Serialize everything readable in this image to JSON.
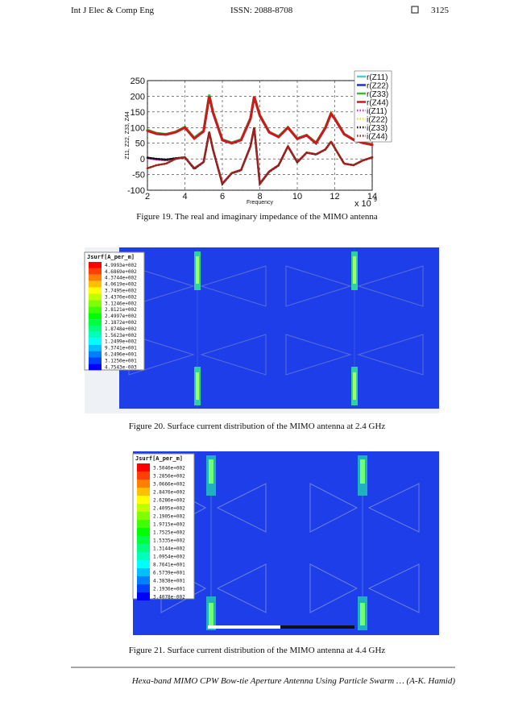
{
  "header": {
    "journal": "Int J Elec & Comp Eng",
    "issn": "ISSN: 2088-8708",
    "page": "3125"
  },
  "figures": [
    {
      "caption": "Figure 19. The real and imaginary impedance of the MIMO antenna",
      "chart": {
        "type": "line",
        "x_label": "Frequency",
        "y_label": "Z11, Z22, Z33, Z44",
        "scale_label": "x 10",
        "scale_exponent": "9",
        "x": [
          2,
          2.5,
          3,
          3.5,
          4,
          4.5,
          5,
          5.3,
          5.5,
          6,
          6.5,
          7,
          7.5,
          7.7,
          8,
          8.5,
          9,
          9.5,
          10,
          10.5,
          11,
          11.5,
          11.8,
          12,
          12.5,
          13,
          13.5,
          14
        ],
        "xlim": [
          2,
          14
        ],
        "xticks": [
          2,
          4,
          6,
          8,
          10,
          12,
          14
        ],
        "ylim": [
          -100,
          250
        ],
        "yticks": [
          -100,
          -50,
          0,
          50,
          100,
          150,
          200,
          250
        ],
        "grid": true,
        "legend": "top-right",
        "series": [
          {
            "name": "r(Z11)",
            "color": "#33d6e6",
            "style": "solid",
            "values": [
              92,
              82,
              78,
              85,
              100,
              68,
              90,
              200,
              150,
              62,
              52,
              62,
              130,
              198,
              140,
              86,
              72,
              100,
              66,
              76,
              52,
              100,
              145,
              130,
              80,
              62,
              52,
              46
            ]
          },
          {
            "name": "r(Z22)",
            "color": "#2030d0",
            "style": "solid",
            "values": [
              90,
              80,
              78,
              86,
              101,
              66,
              88,
              202,
              148,
              60,
              50,
              60,
              128,
              199,
              138,
              85,
              70,
              100,
              64,
              75,
              50,
              99,
              144,
              128,
              79,
              61,
              51,
              45
            ]
          },
          {
            "name": "r(Z33)",
            "color": "#30c030",
            "style": "solid",
            "values": [
              92,
              82,
              79,
              86,
              102,
              67,
              90,
              205,
              150,
              61,
              51,
              61,
              130,
              200,
              140,
              86,
              71,
              101,
              65,
              76,
              51,
              100,
              146,
              130,
              80,
              62,
              52,
              46
            ]
          },
          {
            "name": "r(Z44)",
            "color": "#d01818",
            "style": "solid",
            "values": [
              90,
              80,
              78,
              85,
              100,
              65,
              88,
              200,
              148,
              60,
              50,
              60,
              128,
              198,
              138,
              85,
              70,
              100,
              64,
              75,
              50,
              99,
              144,
              128,
              79,
              61,
              51,
              45
            ]
          },
          {
            "name": "i(Z11)",
            "color": "#d030d0",
            "style": "dotted",
            "values": [
              2,
              -2,
              -5,
              0,
              5,
              -30,
              -10,
              85,
              30,
              -78,
              -45,
              -35,
              40,
              100,
              -78,
              -40,
              -20,
              40,
              -10,
              20,
              15,
              30,
              55,
              35,
              -15,
              -20,
              -5,
              5
            ]
          },
          {
            "name": "i(Z22)",
            "color": "#e0e020",
            "style": "dotted",
            "values": [
              -30,
              -20,
              -15,
              0,
              5,
              -30,
              -10,
              86,
              30,
              -80,
              -45,
              -35,
              40,
              101,
              -80,
              -40,
              -20,
              40,
              -10,
              20,
              15,
              30,
              55,
              35,
              -15,
              -20,
              -5,
              5
            ]
          },
          {
            "name": "i(Z33)",
            "color": "#101010",
            "style": "dotted",
            "values": [
              4,
              0,
              -2,
              2,
              5,
              -32,
              -10,
              85,
              30,
              -80,
              -46,
              -36,
              40,
              100,
              -80,
              -41,
              -21,
              40,
              -11,
              20,
              14,
              30,
              55,
              35,
              -15,
              -20,
              -5,
              5
            ]
          },
          {
            "name": "i(Z44)",
            "color": "#a02020",
            "style": "dotted",
            "values": [
              -30,
              -20,
              -15,
              0,
              5,
              -30,
              -10,
              85,
              30,
              -80,
              -45,
              -35,
              40,
              100,
              -80,
              -40,
              -20,
              40,
              -10,
              20,
              15,
              30,
              55,
              35,
              -15,
              -20,
              -5,
              5
            ]
          }
        ]
      }
    },
    {
      "caption": "Figure 20. Surface current distribution of the MIMO antenna at 2.4 GHz",
      "colorbar": {
        "title": "Jsurf[A_per_m]",
        "labels": [
          "4.9993e+002",
          "4.6869e+002",
          "4.3744e+002",
          "4.0619e+002",
          "3.7495e+002",
          "3.4370e+002",
          "3.1246e+002",
          "2.8121e+002",
          "2.4997e+002",
          "2.1872e+002",
          "1.8748e+002",
          "1.5623e+002",
          "1.2499e+002",
          "9.3741e+001",
          "6.2496e+001",
          "3.1250e+001",
          "4.7543e-003"
        ]
      }
    },
    {
      "caption": "Figure 21. Surface current distribution of the MIMO antenna at 4.4 GHz",
      "colorbar": {
        "title": "Jsurf[A_per_m]",
        "labels": [
          "3.5046e+002",
          "3.2856e+002",
          "3.0666e+002",
          "2.8476e+002",
          "2.6286e+002",
          "2.4095e+002",
          "2.1905e+002",
          "1.9715e+002",
          "1.7525e+002",
          "1.5335e+002",
          "1.3144e+002",
          "1.0954e+002",
          "8.7641e+001",
          "6.5739e+001",
          "4.3838e+001",
          "2.1936e+001",
          "3.4078e-002"
        ]
      }
    }
  ],
  "footer": "Hexa-band MIMO CPW Bow-tie Aperture Antenna Using Particle Swarm … (A-K. Hamid)"
}
